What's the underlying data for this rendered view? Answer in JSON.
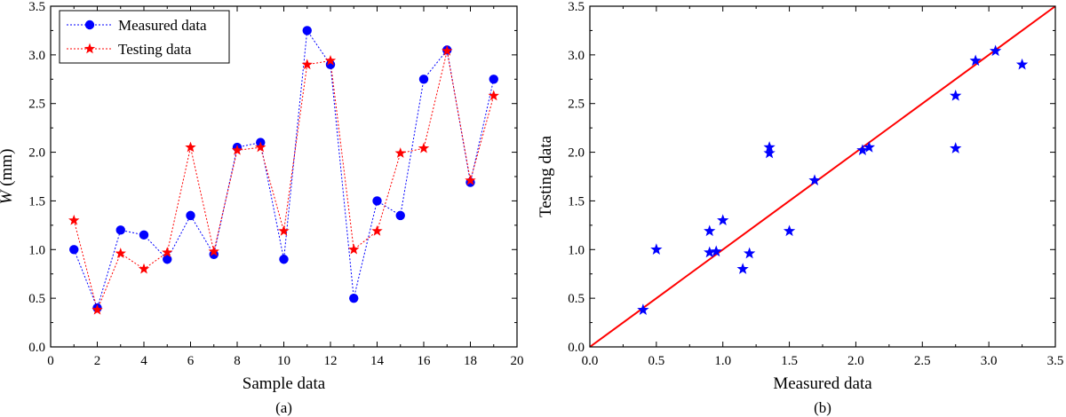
{
  "chart_data": [
    {
      "panel": "(a)",
      "type": "line",
      "xlabel": "Sample data",
      "ylabel_italic": "W",
      "ylabel_unit": " (mm)",
      "xlim": [
        0,
        20
      ],
      "ylim": [
        0,
        3.5
      ],
      "xticks": [
        "0",
        "2",
        "4",
        "6",
        "8",
        "10",
        "12",
        "14",
        "16",
        "18",
        "20"
      ],
      "yticks": [
        "0.0",
        "0.5",
        "1.0",
        "1.5",
        "2.0",
        "2.5",
        "3.0",
        "3.5"
      ],
      "grid": false,
      "legend_position": "top-left",
      "x": [
        1,
        2,
        3,
        4,
        5,
        6,
        7,
        8,
        9,
        10,
        11,
        12,
        13,
        14,
        15,
        16,
        17,
        18,
        19
      ],
      "series": [
        {
          "name": "Measured data",
          "color": "#0000ff",
          "marker": "circle",
          "values": [
            1.0,
            0.4,
            1.2,
            1.15,
            0.9,
            1.35,
            0.95,
            2.05,
            2.1,
            0.9,
            3.25,
            2.9,
            0.5,
            1.5,
            1.35,
            2.75,
            3.05,
            1.69,
            2.75
          ]
        },
        {
          "name": "Testing data",
          "color": "#ff0000",
          "marker": "star",
          "values": [
            1.3,
            0.38,
            0.96,
            0.8,
            0.97,
            2.05,
            0.98,
            2.02,
            2.05,
            1.19,
            2.9,
            2.94,
            1.0,
            1.19,
            1.99,
            2.04,
            3.04,
            1.71,
            2.58
          ]
        }
      ]
    },
    {
      "panel": "(b)",
      "type": "scatter",
      "xlabel": "Measured data",
      "ylabel": "Testing data",
      "xlim": [
        0,
        3.5
      ],
      "ylim": [
        0,
        3.5
      ],
      "xticks": [
        "0.0",
        "0.5",
        "1.0",
        "1.5",
        "2.0",
        "2.5",
        "3.0",
        "3.5"
      ],
      "yticks": [
        "0.0",
        "0.5",
        "1.0",
        "1.5",
        "2.0",
        "2.5",
        "3.0",
        "3.5"
      ],
      "grid": false,
      "marker_color": "#0000ff",
      "line_color": "#ff0000",
      "reference_line": [
        [
          0,
          0
        ],
        [
          3.5,
          3.5
        ]
      ],
      "x": [
        1.0,
        0.4,
        1.2,
        1.15,
        0.9,
        1.35,
        0.95,
        2.05,
        2.1,
        0.9,
        3.25,
        2.9,
        0.5,
        1.5,
        1.35,
        2.75,
        3.05,
        1.69,
        2.75
      ],
      "y": [
        1.3,
        0.38,
        0.96,
        0.8,
        0.97,
        2.05,
        0.98,
        2.02,
        2.05,
        1.19,
        2.9,
        2.94,
        1.0,
        1.19,
        1.99,
        2.04,
        3.04,
        1.71,
        2.58
      ]
    }
  ]
}
